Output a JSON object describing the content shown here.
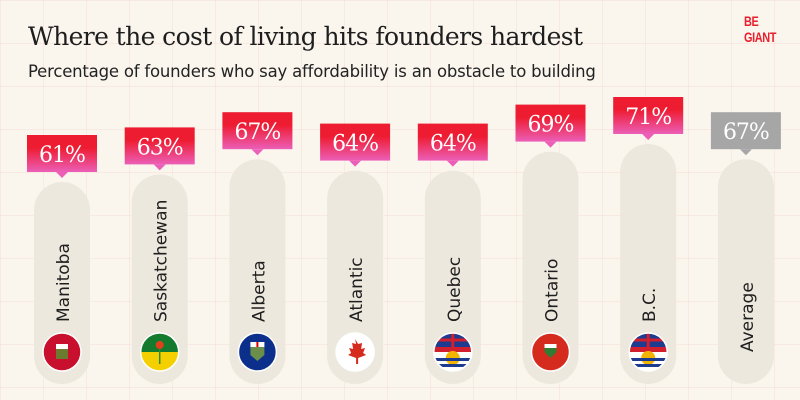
{
  "title": "Where the cost of living hits founders hardest",
  "subtitle": "Percentage of founders who say affordability is an obstacle to building",
  "logo": "BE GIANT",
  "chart_data": {
    "type": "bar",
    "title": "Where the cost of living hits founders hardest",
    "subtitle": "Percentage of founders who say affordability is an obstacle to building",
    "categories": [
      "Manitoba",
      "Saskatchewan",
      "Alberta",
      "Atlantic",
      "Quebec",
      "Ontario",
      "B.C.",
      "Average"
    ],
    "values": [
      61,
      63,
      67,
      64,
      64,
      69,
      71,
      67
    ],
    "labels": [
      "61%",
      "63%",
      "67%",
      "64%",
      "64%",
      "69%",
      "71%",
      "67%"
    ],
    "flags": [
      "manitoba-flag",
      "saskatchewan-flag",
      "alberta-flag",
      "canada-flag",
      "quebec-flag",
      "ontario-flag",
      "bc-flag",
      null
    ],
    "unit": "%",
    "colors": {
      "highlight_top": "#ee1c31",
      "highlight_bottom": "#ec5fb8",
      "average": "#a6a6a6",
      "bar": "#ece8de"
    }
  }
}
